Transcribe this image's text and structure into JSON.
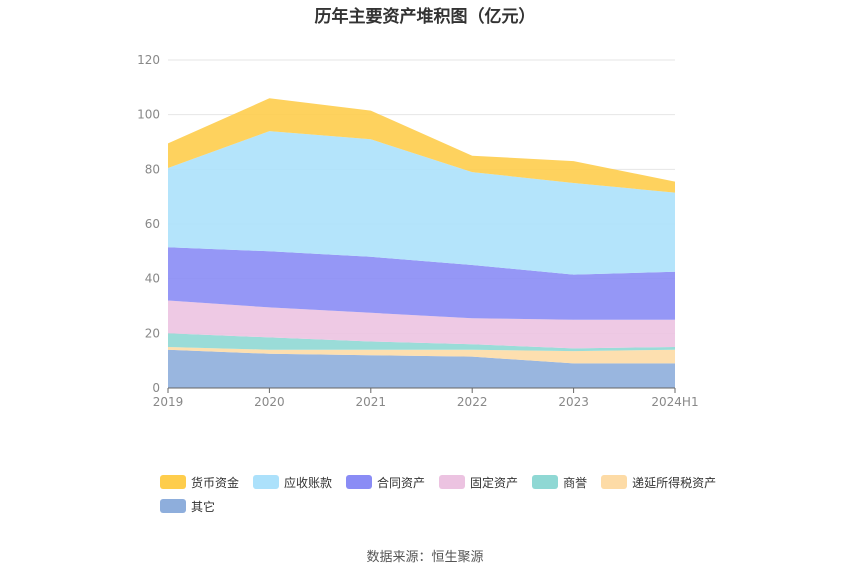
{
  "chart_data": {
    "type": "area",
    "stacked": true,
    "title": "历年主要资产堆积图（亿元）",
    "x": [
      "2019",
      "2020",
      "2021",
      "2022",
      "2023",
      "2024H1"
    ],
    "ylim": [
      0,
      120
    ],
    "yticks": [
      0,
      20,
      40,
      60,
      80,
      100,
      120
    ],
    "grid": true,
    "legend_position": "bottom",
    "series": [
      {
        "name": "其它",
        "color": "#8eaedc",
        "values": [
          14,
          12.5,
          12,
          11.5,
          9,
          9
        ]
      },
      {
        "name": "递延所得税资产",
        "color": "#fddba6",
        "values": [
          1,
          1.5,
          2,
          2.5,
          4.5,
          5
        ]
      },
      {
        "name": "商誉",
        "color": "#8fd8d4",
        "values": [
          5,
          4.5,
          3,
          2,
          1,
          1
        ]
      },
      {
        "name": "固定资产",
        "color": "#ecc3e1",
        "values": [
          12,
          11,
          10.5,
          9.5,
          10.5,
          10
        ]
      },
      {
        "name": "合同资产",
        "color": "#8a8cf5",
        "values": [
          19.5,
          20.5,
          20.5,
          19.5,
          16.5,
          17.5
        ]
      },
      {
        "name": "应收账款",
        "color": "#ace1fb",
        "values": [
          29,
          44,
          43,
          34,
          33.5,
          29
        ]
      },
      {
        "name": "货币资金",
        "color": "#fecd4c",
        "values": [
          9,
          12,
          10.5,
          6,
          8,
          4
        ]
      }
    ]
  },
  "legend_order": [
    "货币资金",
    "应收账款",
    "合同资产",
    "固定资产",
    "商誉",
    "递延所得税资产",
    "其它"
  ],
  "source": "数据来源：恒生聚源"
}
